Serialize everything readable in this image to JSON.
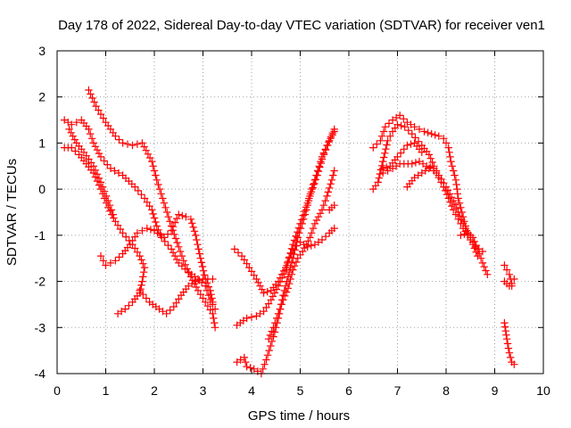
{
  "chart_data": {
    "type": "scatter",
    "title": "Day 178 of 2022, Sidereal Day-to-day VTEC variation (SDTVAR) for receiver ven1",
    "xlabel": "GPS time / hours",
    "ylabel": "SDTVAR / TECUs",
    "xlim": [
      0,
      10
    ],
    "ylim": [
      -4,
      3
    ],
    "x_ticks": [
      "0",
      "1",
      "2",
      "3",
      "4",
      "5",
      "6",
      "7",
      "8",
      "9",
      "10"
    ],
    "y_ticks": [
      "-4",
      "-3",
      "-2",
      "-1",
      "0",
      "1",
      "2",
      "3"
    ],
    "grid": true,
    "marker": "plus",
    "color": "#ff0000",
    "series": [
      {
        "points": [
          [
            0.65,
            2.15
          ],
          [
            0.8,
            1.8
          ],
          [
            1.0,
            1.45
          ],
          [
            1.2,
            1.15
          ],
          [
            1.35,
            1.0
          ],
          [
            1.55,
            0.95
          ],
          [
            1.75,
            1.0
          ],
          [
            1.95,
            0.6
          ],
          [
            2.05,
            0.2
          ],
          [
            2.2,
            -0.3
          ],
          [
            2.35,
            -0.8
          ],
          [
            2.5,
            -1.25
          ],
          [
            2.6,
            -1.55
          ],
          [
            2.75,
            -1.9
          ],
          [
            2.9,
            -2.2
          ],
          [
            3.05,
            -2.45
          ],
          [
            3.2,
            -2.7
          ],
          [
            3.25,
            -3.0
          ]
        ]
      },
      {
        "points": [
          [
            0.15,
            1.5
          ],
          [
            0.3,
            1.4
          ],
          [
            0.5,
            1.5
          ],
          [
            0.65,
            1.3
          ],
          [
            0.75,
            1.0
          ],
          [
            0.9,
            0.7
          ],
          [
            1.1,
            0.45
          ],
          [
            1.35,
            0.3
          ],
          [
            1.6,
            0.05
          ],
          [
            1.8,
            -0.2
          ],
          [
            1.95,
            -0.45
          ],
          [
            2.05,
            -0.8
          ],
          [
            2.15,
            -1.05
          ],
          [
            2.35,
            -1.3
          ],
          [
            2.5,
            -1.6
          ],
          [
            2.7,
            -1.8
          ],
          [
            2.9,
            -1.95
          ],
          [
            3.05,
            -2.1
          ],
          [
            3.15,
            -2.4
          ],
          [
            3.25,
            -2.6
          ]
        ]
      },
      {
        "points": [
          [
            0.15,
            0.9
          ],
          [
            0.3,
            0.9
          ],
          [
            0.45,
            0.75
          ],
          [
            0.6,
            0.55
          ],
          [
            0.75,
            0.35
          ],
          [
            0.9,
            0.0
          ],
          [
            1.05,
            -0.4
          ],
          [
            1.2,
            -0.7
          ],
          [
            1.35,
            -0.95
          ],
          [
            1.55,
            -1.2
          ],
          [
            1.7,
            -1.45
          ],
          [
            1.8,
            -1.7
          ],
          [
            1.75,
            -2.0
          ],
          [
            1.7,
            -2.25
          ],
          [
            1.55,
            -2.45
          ],
          [
            1.4,
            -2.6
          ],
          [
            1.25,
            -2.7
          ]
        ]
      },
      {
        "points": [
          [
            0.25,
            1.3
          ],
          [
            0.4,
            1.0
          ],
          [
            0.55,
            0.8
          ],
          [
            0.75,
            0.5
          ],
          [
            0.9,
            0.15
          ],
          [
            1.05,
            -0.25
          ],
          [
            1.15,
            -0.55
          ]
        ]
      },
      {
        "points": [
          [
            0.9,
            -1.45
          ],
          [
            1.0,
            -1.65
          ],
          [
            1.2,
            -1.55
          ],
          [
            1.35,
            -1.4
          ],
          [
            1.5,
            -1.2
          ],
          [
            1.65,
            -0.95
          ],
          [
            1.85,
            -0.85
          ],
          [
            2.0,
            -0.9
          ],
          [
            2.2,
            -1.05
          ],
          [
            2.35,
            -0.9
          ],
          [
            2.5,
            -0.55
          ],
          [
            2.65,
            -0.6
          ],
          [
            2.75,
            -0.65
          ],
          [
            2.85,
            -1.0
          ],
          [
            2.95,
            -1.5
          ],
          [
            3.05,
            -1.95
          ],
          [
            3.15,
            -2.2
          ],
          [
            3.2,
            -2.45
          ]
        ]
      },
      {
        "points": [
          [
            1.7,
            -2.2
          ],
          [
            1.9,
            -2.45
          ],
          [
            2.1,
            -2.6
          ],
          [
            2.25,
            -2.7
          ],
          [
            2.4,
            -2.55
          ],
          [
            2.55,
            -2.3
          ],
          [
            2.7,
            -2.1
          ],
          [
            2.85,
            -2.0
          ],
          [
            3.0,
            -1.95
          ],
          [
            3.2,
            -1.95
          ]
        ]
      },
      {
        "points": [
          [
            3.65,
            -1.3
          ],
          [
            3.8,
            -1.45
          ],
          [
            3.95,
            -1.7
          ],
          [
            4.1,
            -1.95
          ],
          [
            4.25,
            -2.25
          ],
          [
            4.4,
            -2.2
          ],
          [
            4.55,
            -2.0
          ],
          [
            4.7,
            -1.7
          ],
          [
            4.85,
            -1.3
          ],
          [
            5.0,
            -1.15
          ],
          [
            5.15,
            -1.25
          ],
          [
            5.3,
            -1.2
          ],
          [
            5.45,
            -1.1
          ],
          [
            5.6,
            -0.95
          ],
          [
            5.7,
            -0.85
          ]
        ]
      },
      {
        "points": [
          [
            3.7,
            -2.95
          ],
          [
            3.9,
            -2.8
          ],
          [
            4.1,
            -2.75
          ],
          [
            4.25,
            -2.65
          ],
          [
            4.4,
            -2.4
          ],
          [
            4.55,
            -2.1
          ],
          [
            4.7,
            -1.75
          ],
          [
            4.85,
            -1.2
          ],
          [
            5.0,
            -0.75
          ],
          [
            5.15,
            -0.3
          ],
          [
            5.3,
            0.2
          ],
          [
            5.45,
            0.7
          ],
          [
            5.55,
            0.95
          ],
          [
            5.7,
            1.25
          ]
        ]
      },
      {
        "points": [
          [
            3.7,
            -3.75
          ],
          [
            3.85,
            -3.65
          ],
          [
            3.9,
            -3.85
          ],
          [
            4.05,
            -3.9
          ],
          [
            4.2,
            -4.0
          ],
          [
            4.3,
            -3.7
          ],
          [
            4.45,
            -3.2
          ],
          [
            4.55,
            -2.8
          ],
          [
            4.65,
            -2.3
          ],
          [
            4.75,
            -1.9
          ],
          [
            4.85,
            -1.5
          ],
          [
            4.95,
            -1.05
          ],
          [
            5.1,
            -0.55
          ],
          [
            5.2,
            -0.15
          ],
          [
            5.35,
            0.3
          ],
          [
            5.45,
            0.65
          ],
          [
            5.6,
            1.05
          ],
          [
            5.7,
            1.3
          ]
        ]
      },
      {
        "points": [
          [
            4.35,
            -3.25
          ],
          [
            4.45,
            -3.0
          ],
          [
            4.55,
            -2.7
          ],
          [
            4.65,
            -2.4
          ],
          [
            4.75,
            -2.15
          ],
          [
            4.85,
            -1.75
          ],
          [
            4.95,
            -1.5
          ],
          [
            5.05,
            -1.35
          ],
          [
            5.2,
            -1.05
          ],
          [
            5.3,
            -0.75
          ],
          [
            5.45,
            -0.45
          ],
          [
            5.55,
            -0.15
          ],
          [
            5.65,
            0.2
          ],
          [
            5.7,
            0.4
          ]
        ]
      },
      {
        "points": [
          [
            5.6,
            -0.45
          ],
          [
            5.7,
            -0.35
          ]
        ]
      },
      {
        "points": [
          [
            6.5,
            0.9
          ],
          [
            6.65,
            1.05
          ],
          [
            6.75,
            1.35
          ],
          [
            6.9,
            1.5
          ],
          [
            7.05,
            1.6
          ],
          [
            7.2,
            1.45
          ],
          [
            7.35,
            1.35
          ],
          [
            7.55,
            1.25
          ],
          [
            7.7,
            1.2
          ],
          [
            7.85,
            1.15
          ],
          [
            7.95,
            1.1
          ],
          [
            8.05,
            0.9
          ],
          [
            8.1,
            0.6
          ],
          [
            8.2,
            0.2
          ],
          [
            8.25,
            -0.2
          ],
          [
            8.35,
            -0.6
          ],
          [
            8.45,
            -1.0
          ],
          [
            8.55,
            -1.2
          ],
          [
            8.65,
            -1.45
          ]
        ]
      },
      {
        "points": [
          [
            6.5,
            0.0
          ],
          [
            6.6,
            0.15
          ],
          [
            6.7,
            0.6
          ],
          [
            6.8,
            1.05
          ],
          [
            6.9,
            1.25
          ],
          [
            7.0,
            1.4
          ],
          [
            7.15,
            1.35
          ],
          [
            7.3,
            1.2
          ],
          [
            7.5,
            0.95
          ],
          [
            7.65,
            0.75
          ],
          [
            7.75,
            0.5
          ],
          [
            7.85,
            0.3
          ],
          [
            8.0,
            0.05
          ],
          [
            8.15,
            -0.25
          ],
          [
            8.25,
            -0.5
          ],
          [
            8.35,
            -0.75
          ],
          [
            8.45,
            -0.95
          ],
          [
            8.55,
            -1.05
          ],
          [
            8.65,
            -1.3
          ],
          [
            8.75,
            -1.6
          ],
          [
            8.85,
            -1.85
          ]
        ]
      },
      {
        "points": [
          [
            6.7,
            0.45
          ],
          [
            6.85,
            0.5
          ],
          [
            7.0,
            0.7
          ],
          [
            7.2,
            0.95
          ],
          [
            7.35,
            1.0
          ],
          [
            7.5,
            0.8
          ]
        ]
      },
      {
        "points": [
          [
            6.7,
            0.35
          ],
          [
            6.9,
            0.45
          ],
          [
            7.05,
            0.55
          ],
          [
            7.3,
            0.55
          ],
          [
            7.45,
            0.6
          ],
          [
            7.6,
            0.5
          ],
          [
            7.75,
            0.45
          ],
          [
            7.85,
            0.25
          ],
          [
            7.95,
            0.05
          ],
          [
            8.05,
            -0.2
          ],
          [
            8.15,
            -0.45
          ],
          [
            8.25,
            -0.65
          ],
          [
            8.35,
            -0.85
          ],
          [
            8.5,
            -1.05
          ],
          [
            8.6,
            -1.25
          ],
          [
            8.75,
            -1.35
          ]
        ]
      },
      {
        "points": [
          [
            7.2,
            0.05
          ],
          [
            7.35,
            0.25
          ],
          [
            7.5,
            0.35
          ],
          [
            7.65,
            0.45
          ],
          [
            7.75,
            0.4
          ]
        ]
      },
      {
        "points": [
          [
            8.3,
            -1.0
          ],
          [
            8.45,
            -0.95
          ]
        ]
      },
      {
        "points": [
          [
            9.2,
            -1.65
          ],
          [
            9.3,
            -1.85
          ],
          [
            9.35,
            -2.05
          ],
          [
            9.4,
            -1.95
          ]
        ]
      },
      {
        "points": [
          [
            9.2,
            -2.0
          ],
          [
            9.3,
            -2.1
          ],
          [
            9.35,
            -2.1
          ]
        ]
      },
      {
        "points": [
          [
            9.2,
            -2.9
          ],
          [
            9.25,
            -3.25
          ],
          [
            9.3,
            -3.55
          ],
          [
            9.35,
            -3.75
          ],
          [
            9.4,
            -3.8
          ]
        ]
      }
    ]
  }
}
